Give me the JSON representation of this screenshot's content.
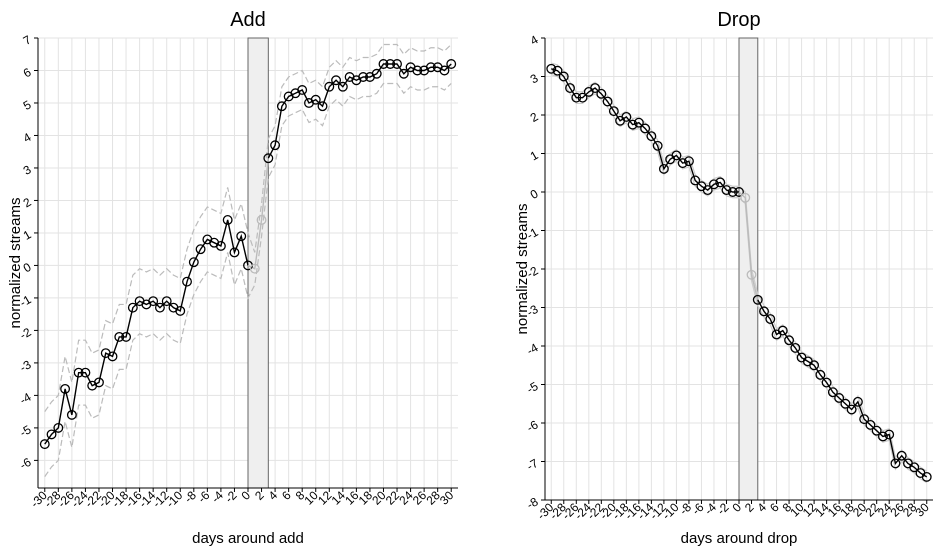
{
  "chart_data": [
    {
      "type": "line",
      "title": "Add",
      "x_label": "days around add",
      "y_label": "normalized streams",
      "x": [
        -30,
        -29,
        -28,
        -27,
        -26,
        -25,
        -24,
        -23,
        -22,
        -21,
        -20,
        -19,
        -18,
        -17,
        -16,
        -15,
        -14,
        -13,
        -12,
        -11,
        -10,
        -9,
        -8,
        -7,
        -6,
        -5,
        -4,
        -3,
        -2,
        -1,
        0,
        1,
        2,
        3,
        4,
        5,
        6,
        7,
        8,
        9,
        10,
        11,
        12,
        13,
        14,
        15,
        16,
        17,
        18,
        19,
        20,
        21,
        22,
        23,
        24,
        25,
        26,
        27,
        28,
        29,
        30
      ],
      "values": [
        -5.5,
        -5.2,
        -5.0,
        -3.8,
        -4.6,
        -3.3,
        -3.3,
        -3.7,
        -3.6,
        -2.7,
        -2.8,
        -2.2,
        -2.2,
        -1.3,
        -1.1,
        -1.2,
        -1.1,
        -1.3,
        -1.1,
        -1.3,
        -1.4,
        -0.5,
        0.1,
        0.5,
        0.8,
        0.7,
        0.6,
        1.4,
        0.4,
        0.9,
        0.0,
        -0.1,
        1.4,
        3.3,
        3.7,
        4.9,
        5.2,
        5.3,
        5.4,
        5.0,
        5.1,
        4.9,
        5.5,
        5.7,
        5.5,
        5.8,
        5.7,
        5.8,
        5.8,
        5.9,
        6.2,
        6.2,
        6.2,
        5.9,
        6.1,
        6.0,
        6.0,
        6.1,
        6.1,
        6.0,
        6.2
      ],
      "ci_upper": [
        -4.5,
        -4.2,
        -4.0,
        -2.8,
        -3.6,
        -2.3,
        -2.3,
        -2.7,
        -2.6,
        -1.7,
        -1.8,
        -1.2,
        -1.2,
        -0.3,
        -0.1,
        -0.2,
        -0.1,
        -0.3,
        -0.1,
        -0.3,
        -0.4,
        0.5,
        1.1,
        1.5,
        1.8,
        1.7,
        1.6,
        2.4,
        1.4,
        1.9,
        1.0,
        0.4,
        1.9,
        3.9,
        4.3,
        5.5,
        5.8,
        5.9,
        6.0,
        5.6,
        5.7,
        5.5,
        6.1,
        6.3,
        6.1,
        6.4,
        6.3,
        6.4,
        6.4,
        6.5,
        6.8,
        6.8,
        6.8,
        6.5,
        6.7,
        6.6,
        6.6,
        6.7,
        6.7,
        6.6,
        6.8
      ],
      "ci_lower": [
        -6.5,
        -6.2,
        -6.0,
        -4.8,
        -5.6,
        -4.3,
        -4.3,
        -4.7,
        -4.6,
        -3.7,
        -3.8,
        -3.2,
        -3.2,
        -2.3,
        -2.1,
        -2.2,
        -2.1,
        -2.3,
        -2.1,
        -2.3,
        -2.4,
        -1.5,
        -0.9,
        -0.5,
        -0.2,
        -0.3,
        -0.4,
        0.4,
        -0.6,
        -0.1,
        -1.0,
        -0.6,
        0.9,
        2.7,
        3.1,
        4.3,
        4.6,
        4.7,
        4.8,
        4.4,
        4.5,
        4.3,
        4.9,
        5.1,
        4.9,
        5.2,
        5.1,
        5.2,
        5.2,
        5.3,
        5.6,
        5.6,
        5.6,
        5.3,
        5.5,
        5.4,
        5.4,
        5.5,
        5.5,
        5.4,
        5.6
      ],
      "ci_style": "dashed",
      "color": "#000000",
      "window_color": "#bbbbbb",
      "ci_color": "#bbbbbb",
      "window": [
        0,
        3
      ],
      "xlim": [
        -31,
        31
      ],
      "ylim": [
        -6.85,
        7
      ],
      "xticks": [
        -30,
        -28,
        -26,
        -24,
        -22,
        -20,
        -18,
        -16,
        -14,
        -12,
        -10,
        -8,
        -6,
        -4,
        -2,
        0,
        2,
        4,
        6,
        8,
        10,
        12,
        14,
        16,
        18,
        20,
        22,
        24,
        26,
        28,
        30
      ],
      "yticks": [
        -6,
        -5,
        -4,
        -3,
        -2,
        -1,
        0,
        1,
        2,
        3,
        4,
        5,
        6,
        7
      ],
      "grid": true
    },
    {
      "type": "line",
      "title": "Drop",
      "x_label": "days around drop",
      "y_label": "normalized streams",
      "x": [
        -30,
        -29,
        -28,
        -27,
        -26,
        -25,
        -24,
        -23,
        -22,
        -21,
        -20,
        -19,
        -18,
        -17,
        -16,
        -15,
        -14,
        -13,
        -12,
        -11,
        -10,
        -9,
        -8,
        -7,
        -6,
        -5,
        -4,
        -3,
        -2,
        -1,
        0,
        1,
        2,
        3,
        4,
        5,
        6,
        7,
        8,
        9,
        10,
        11,
        12,
        13,
        14,
        15,
        16,
        17,
        18,
        19,
        20,
        21,
        22,
        23,
        24,
        25,
        26,
        27,
        28,
        29,
        30
      ],
      "values": [
        3.2,
        3.15,
        3.0,
        2.7,
        2.45,
        2.45,
        2.6,
        2.7,
        2.55,
        2.35,
        2.1,
        1.85,
        1.95,
        1.75,
        1.8,
        1.65,
        1.45,
        1.2,
        0.6,
        0.85,
        0.95,
        0.75,
        0.8,
        0.3,
        0.15,
        0.05,
        0.2,
        0.25,
        0.05,
        0.0,
        0.0,
        -0.15,
        -2.15,
        -2.8,
        -3.1,
        -3.3,
        -3.7,
        -3.6,
        -3.85,
        -4.05,
        -4.3,
        -4.4,
        -4.5,
        -4.75,
        -4.95,
        -5.2,
        -5.35,
        -5.5,
        -5.65,
        -5.45,
        -5.9,
        -6.05,
        -6.2,
        -6.35,
        -6.3,
        -7.05,
        -6.85,
        -7.05,
        -7.15,
        -7.3,
        -7.4
      ],
      "ci_upper": [
        3.35,
        3.3,
        3.15,
        2.85,
        2.6,
        2.6,
        2.75,
        2.85,
        2.7,
        2.5,
        2.25,
        2.0,
        2.1,
        1.9,
        1.95,
        1.8,
        1.6,
        1.35,
        0.75,
        1.0,
        1.1,
        0.9,
        0.95,
        0.45,
        0.3,
        0.2,
        0.35,
        0.4,
        0.2,
        0.15,
        0.15,
        0.0,
        -2.0,
        -2.65,
        -2.95,
        -3.15,
        -3.55,
        -3.45,
        -3.7,
        -3.9,
        -4.15,
        -4.25,
        -4.35,
        -4.6,
        -4.8,
        -5.05,
        -5.2,
        -5.35,
        -5.5,
        -5.3,
        -5.75,
        -5.9,
        -6.05,
        -6.2,
        -6.15,
        -6.9,
        -6.7,
        -6.9,
        -7.0,
        -7.15,
        -7.25
      ],
      "ci_lower": [
        3.05,
        3.0,
        2.85,
        2.55,
        2.3,
        2.3,
        2.45,
        2.55,
        2.4,
        2.2,
        1.95,
        1.7,
        1.8,
        1.6,
        1.65,
        1.5,
        1.3,
        1.05,
        0.45,
        0.7,
        0.8,
        0.6,
        0.65,
        0.15,
        0.0,
        -0.1,
        0.05,
        0.1,
        -0.1,
        -0.15,
        -0.15,
        -0.3,
        -2.3,
        -2.95,
        -3.25,
        -3.45,
        -3.85,
        -3.75,
        -4.0,
        -4.2,
        -4.45,
        -4.55,
        -4.65,
        -4.9,
        -5.1,
        -5.35,
        -5.5,
        -5.65,
        -5.8,
        -5.6,
        -6.05,
        -6.2,
        -6.35,
        -6.5,
        -6.45,
        -7.2,
        -7.0,
        -7.2,
        -7.3,
        -7.45,
        -7.55
      ],
      "ci_style": "solid",
      "color": "#000000",
      "window_color": "#bbbbbb",
      "ci_color": "#cccccc",
      "window": [
        0,
        3
      ],
      "xlim": [
        -31,
        31
      ],
      "ylim": [
        -8,
        4
      ],
      "xticks": [
        -30,
        -28,
        -26,
        -24,
        -22,
        -20,
        -18,
        -16,
        -14,
        -12,
        -10,
        -8,
        -6,
        -4,
        -2,
        0,
        2,
        4,
        6,
        8,
        10,
        12,
        14,
        16,
        18,
        20,
        22,
        24,
        26,
        28,
        30
      ],
      "yticks": [
        -8,
        -7,
        -6,
        -5,
        -4,
        -3,
        -2,
        -1,
        0,
        1,
        2,
        3,
        4
      ],
      "grid": true
    }
  ]
}
